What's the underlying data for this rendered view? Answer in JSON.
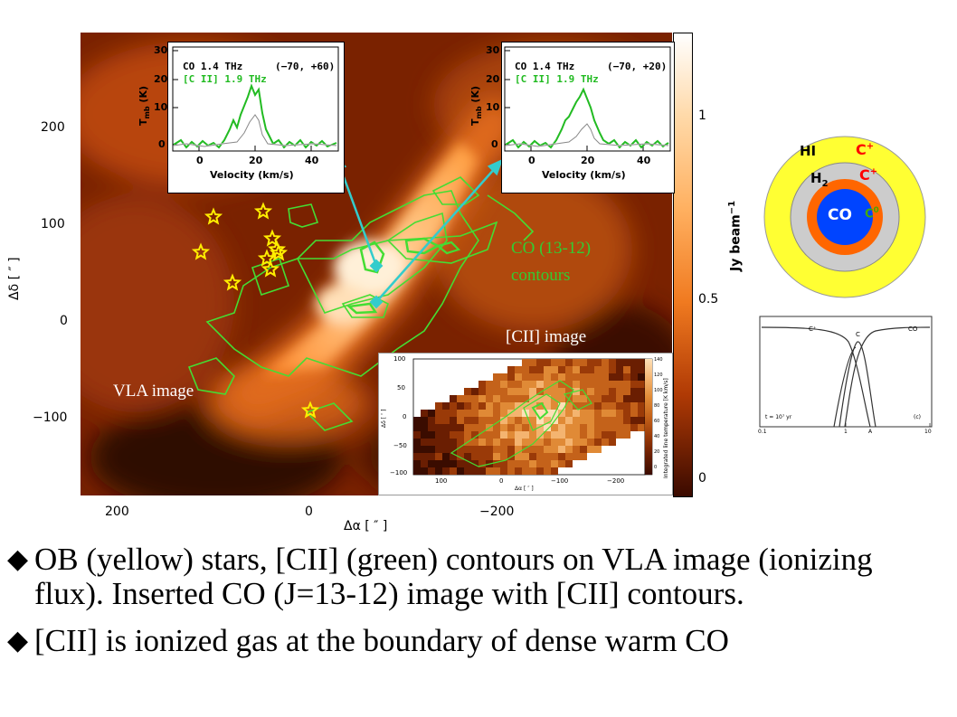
{
  "map": {
    "y_ticks": [
      "200",
      "100",
      "0",
      "−100"
    ],
    "x_ticks": [
      "200",
      "0",
      "−200"
    ],
    "x_label": "Δα [ ″ ]",
    "y_label": "Δδ [ ″ ]",
    "colorbar_ticks": [
      "1",
      "0.5",
      "0"
    ],
    "colorbar_label": "Jy beam",
    "colorbar_label_exp": "−1",
    "label_vla": "VLA image",
    "label_co_line1": "CO (13-12)",
    "label_co_line2": "contours",
    "label_cii_image": "[CII]  image",
    "star_count": 10
  },
  "spectrum_left": {
    "line1": "CO 1.4 THz",
    "line2": "[C II] 1.9 THz",
    "offset": "(−70, +60)",
    "y_ticks": [
      "30",
      "20",
      "10",
      "0"
    ],
    "x_ticks": [
      "0",
      "20",
      "40"
    ],
    "x_label": "Velocity (km/s)",
    "y_label": "T",
    "y_label_sub": "mb",
    "y_label_unit": "(K)"
  },
  "spectrum_right": {
    "line1": "CO 1.4 THz",
    "line2": "[C II] 1.9 THz",
    "offset": "(−70, +20)",
    "y_ticks": [
      "30",
      "20",
      "10",
      "0"
    ],
    "x_ticks": [
      "0",
      "20",
      "40"
    ],
    "x_label": "Velocity (km/s)",
    "y_label": "T",
    "y_label_sub": "mb",
    "y_label_unit": "(K)"
  },
  "inset": {
    "y_ticks": [
      "100",
      "50",
      "0",
      "−50",
      "−100"
    ],
    "x_ticks": [
      "100",
      "0",
      "−100",
      "−200"
    ],
    "x_label": "Δα [ ″ ]",
    "y_label": "Δδ [ ″ ]",
    "cbar_ticks": [
      "140",
      "120",
      "100",
      "80",
      "60",
      "40",
      "20",
      "0"
    ],
    "cbar_label": "Integrated line temperature [K km/s]"
  },
  "pdr": {
    "hi": "HI",
    "h2": "H",
    "h2_sub": "2",
    "co": "CO",
    "c_plus": "C",
    "c_plus_sup": "+",
    "c_zero_sup": "0",
    "colors": {
      "outer": "#ffff33",
      "middle": "#cccccc",
      "inner_ring": "#ff6600",
      "core": "#0044ff"
    }
  },
  "abundance_plot": {
    "label_cplus": "C⁺",
    "label_c": "C",
    "label_co": "CO",
    "time": "t = 10⁷ yr",
    "panel": "(c)",
    "x_ticks": [
      "0.1",
      "1",
      "10"
    ],
    "x_label": "A"
  },
  "bullets": [
    "OB (yellow) stars, [CII] (green) contours on VLA image (ionizing flux). Inserted CO (J=13-12) image with [CII] contours.",
    "[CII] is ionized gas at the boundary of dense warm CO"
  ],
  "bullet_glyph": "◆"
}
